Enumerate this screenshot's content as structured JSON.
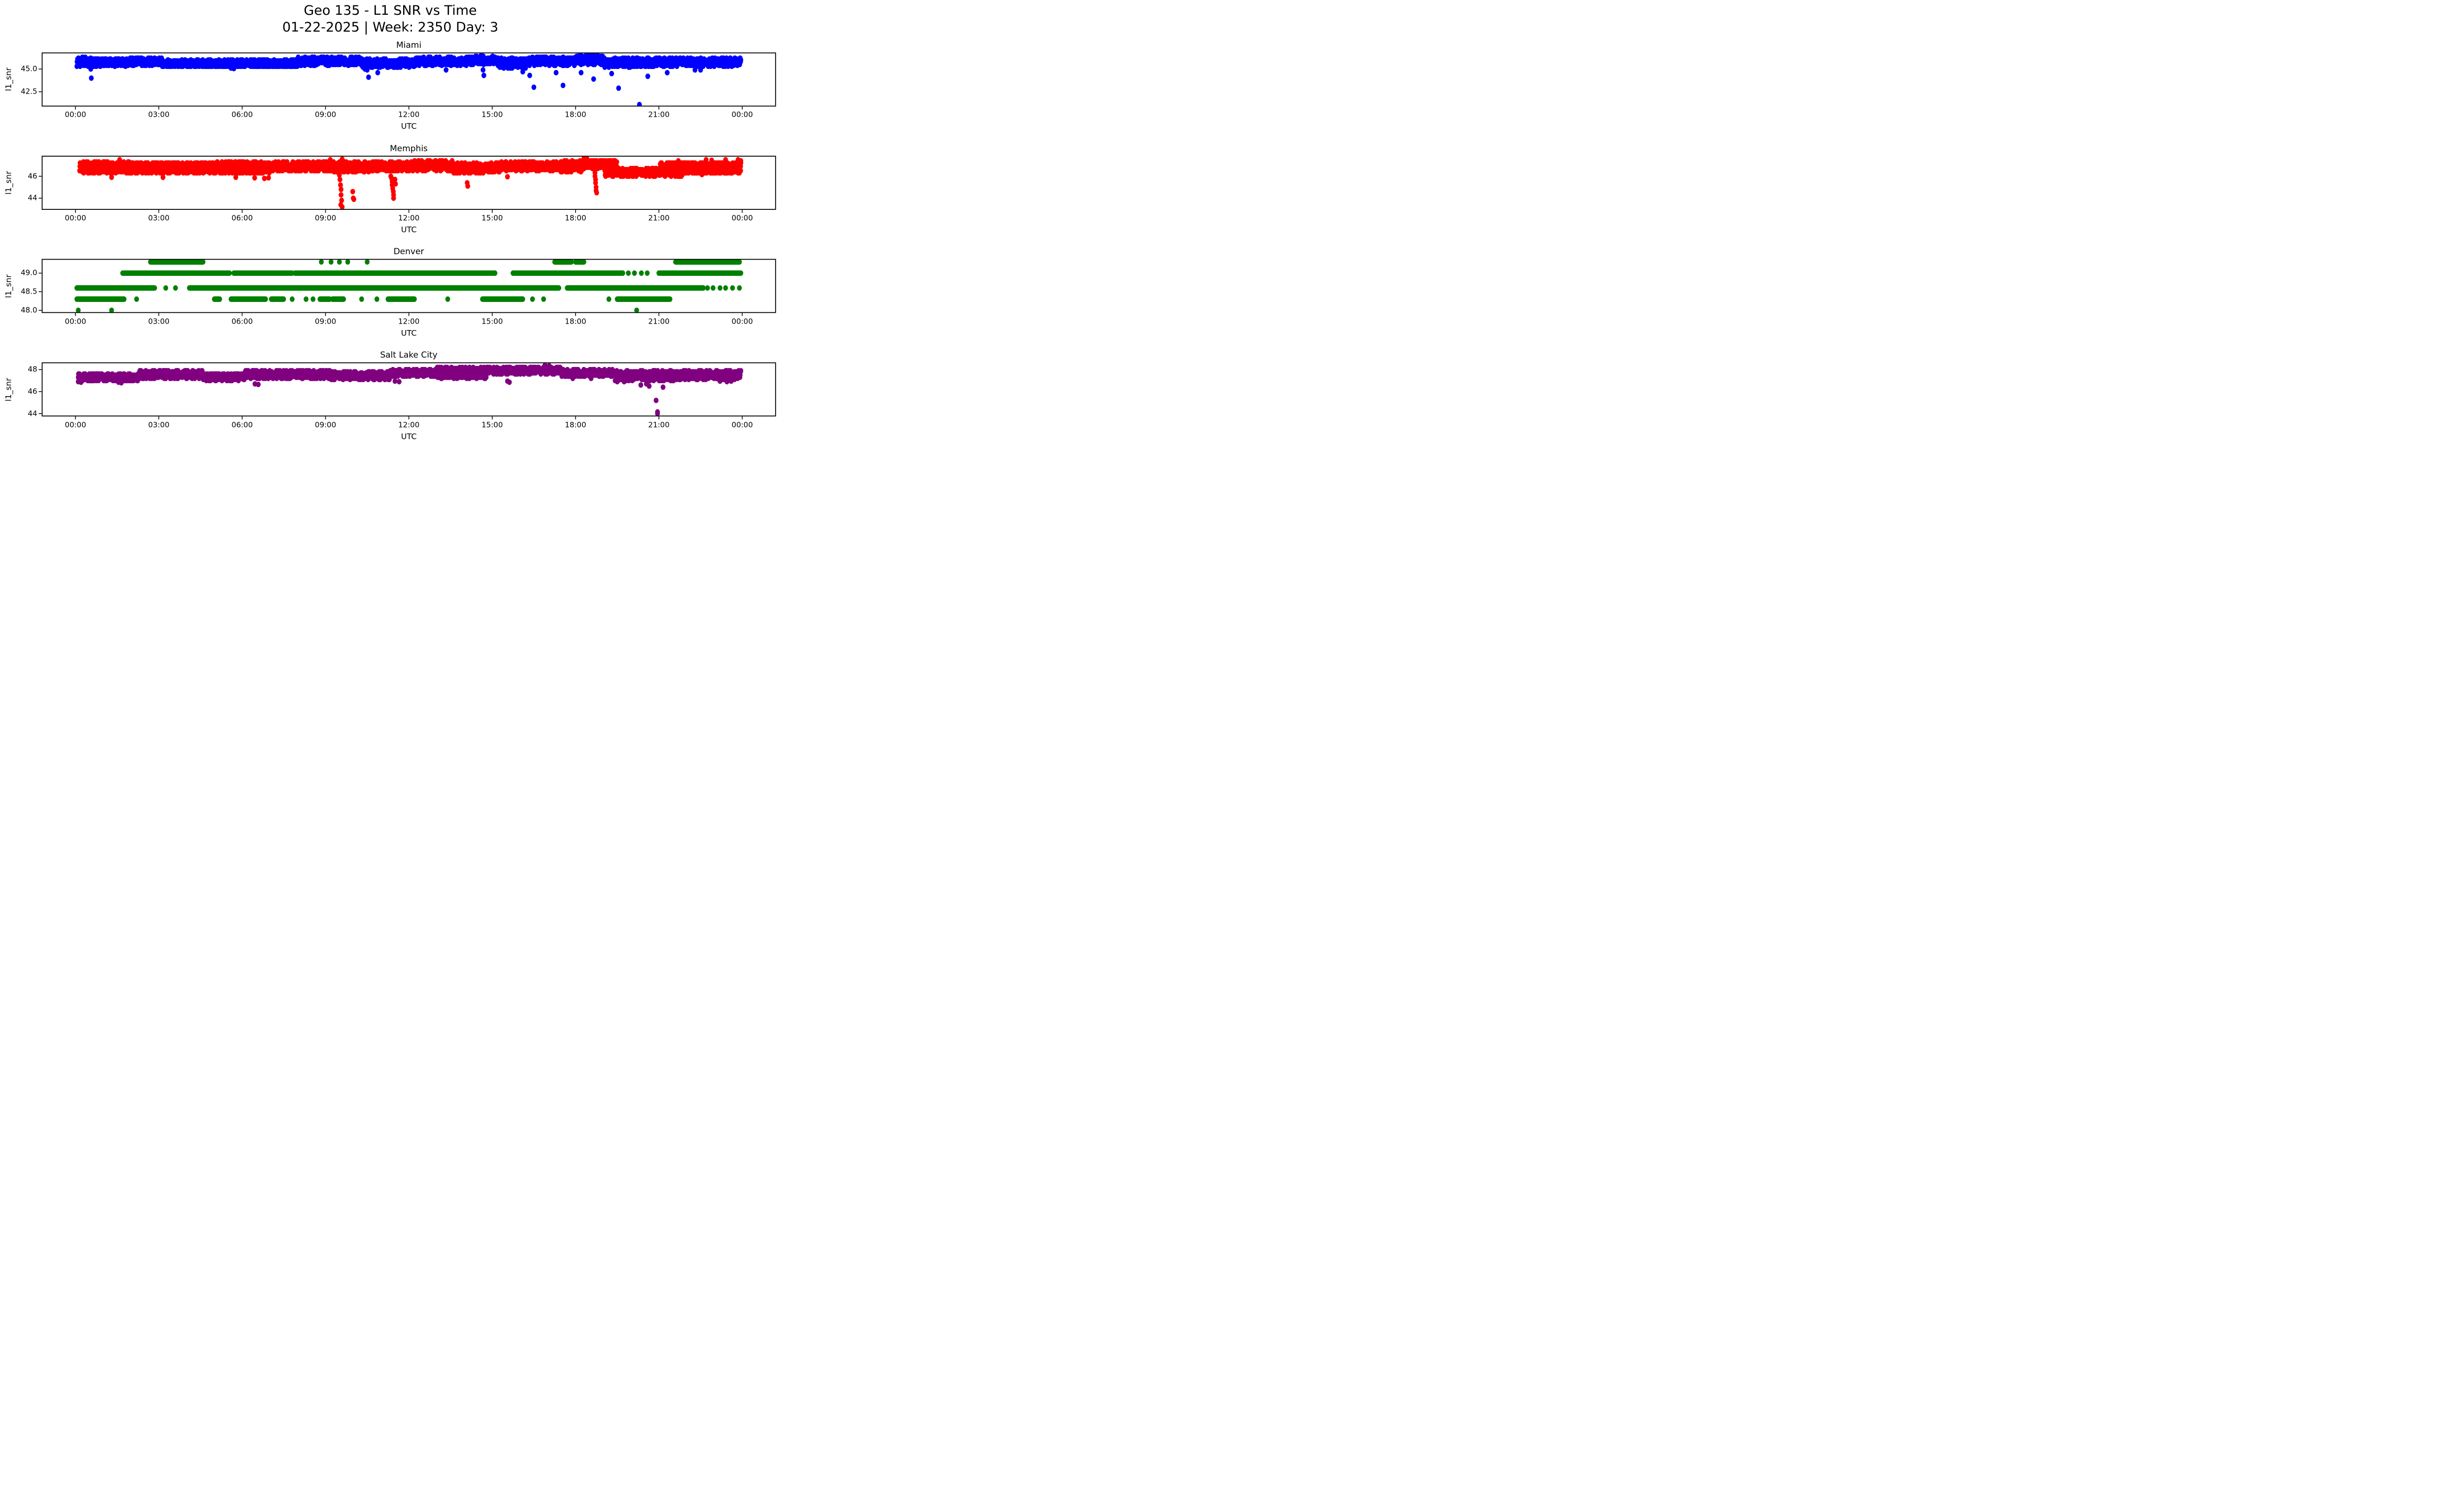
{
  "figure": {
    "title_line1": "Geo 135 - L1 SNR vs Time",
    "title_line2": "01-22-2025 | Week: 2350 Day: 3",
    "background_color": "#ffffff",
    "text_color": "#000000",
    "grid": false,
    "legend": null
  },
  "chart_data": [
    {
      "type": "scatter",
      "title": "Miami",
      "color": "#0000ff",
      "xlabel": "UTC",
      "ylabel": "l1_snr",
      "x_unit": "hours_utc",
      "xlim_hours": [
        -1.2,
        25.2
      ],
      "xticks_hours": [
        0,
        3,
        6,
        9,
        12,
        15,
        18,
        21,
        24
      ],
      "xtick_labels": [
        "00:00",
        "03:00",
        "06:00",
        "09:00",
        "12:00",
        "15:00",
        "18:00",
        "21:00",
        "00:00"
      ],
      "ylim": [
        40.93,
        46.77
      ],
      "yticks": [
        42.5,
        45.0
      ],
      "ytick_labels": [
        "42.5",
        "45.0"
      ],
      "sample_interval_seconds": 30,
      "snr_quantization": 0.1,
      "bands": [
        [
          0.05,
          2.1,
          45.3,
          46.2,
          120
        ],
        [
          2.1,
          3.1,
          45.4,
          46.25,
          120
        ],
        [
          3.1,
          8.0,
          45.25,
          45.8,
          120
        ],
        [
          3.1,
          8.0,
          45.85,
          46.05,
          12
        ],
        [
          8.0,
          10.3,
          45.4,
          46.3,
          120
        ],
        [
          10.3,
          12.2,
          45.2,
          46.1,
          120
        ],
        [
          12.2,
          14.1,
          45.4,
          46.3,
          120
        ],
        [
          14.1,
          15.2,
          45.5,
          46.4,
          120
        ],
        [
          15.2,
          16.2,
          45.1,
          46.2,
          120
        ],
        [
          16.2,
          18.0,
          45.4,
          46.3,
          120
        ],
        [
          18.0,
          19.0,
          45.5,
          46.5,
          120
        ],
        [
          19.0,
          20.9,
          45.2,
          46.2,
          120
        ],
        [
          20.9,
          23.95,
          45.3,
          46.2,
          120
        ]
      ],
      "outliers": [
        [
          0.25,
          46.3
        ],
        [
          0.35,
          46.3
        ],
        [
          0.55,
          45.0
        ],
        [
          0.57,
          44.0
        ],
        [
          5.6,
          45.1
        ],
        [
          5.7,
          45.05
        ],
        [
          10.42,
          45.0
        ],
        [
          10.5,
          44.9
        ],
        [
          10.55,
          44.1
        ],
        [
          10.88,
          44.6
        ],
        [
          13.34,
          44.9
        ],
        [
          14.6,
          46.5
        ],
        [
          14.67,
          44.9
        ],
        [
          14.7,
          44.3
        ],
        [
          16.1,
          44.7
        ],
        [
          16.35,
          44.3
        ],
        [
          16.5,
          43.0
        ],
        [
          17.3,
          44.6
        ],
        [
          17.55,
          43.2
        ],
        [
          18.2,
          44.6
        ],
        [
          18.45,
          46.55
        ],
        [
          18.55,
          46.6
        ],
        [
          18.65,
          43.9
        ],
        [
          19.3,
          44.5
        ],
        [
          19.55,
          42.9
        ],
        [
          20.3,
          41.1
        ],
        [
          20.6,
          44.2
        ],
        [
          21.3,
          44.6
        ],
        [
          22.3,
          44.9
        ],
        [
          22.5,
          44.9
        ]
      ]
    },
    {
      "type": "scatter",
      "title": "Memphis",
      "color": "#ff0000",
      "xlabel": "UTC",
      "ylabel": "l1_snr",
      "x_unit": "hours_utc",
      "xlim_hours": [
        -1.2,
        25.2
      ],
      "xticks_hours": [
        0,
        3,
        6,
        9,
        12,
        15,
        18,
        21,
        24
      ],
      "xtick_labels": [
        "00:00",
        "03:00",
        "06:00",
        "09:00",
        "12:00",
        "15:00",
        "18:00",
        "21:00",
        "00:00"
      ],
      "ylim": [
        42.98,
        47.82
      ],
      "yticks": [
        44,
        46
      ],
      "ytick_labels": [
        "44",
        "46"
      ],
      "sample_interval_seconds": 30,
      "snr_quantization": 0.1,
      "bands": [
        [
          0.15,
          2.0,
          46.45,
          47.35,
          120
        ],
        [
          2.0,
          5.0,
          46.4,
          47.25,
          120
        ],
        [
          5.0,
          9.3,
          46.45,
          47.35,
          120
        ],
        [
          0.25,
          7.0,
          46.25,
          46.4,
          14
        ],
        [
          9.3,
          10.6,
          46.35,
          47.3,
          120
        ],
        [
          10.6,
          12.2,
          46.45,
          47.3,
          120
        ],
        [
          12.2,
          13.6,
          46.5,
          47.4,
          120
        ],
        [
          13.6,
          15.3,
          46.3,
          47.2,
          120
        ],
        [
          15.3,
          17.4,
          46.5,
          47.3,
          120
        ],
        [
          17.4,
          18.3,
          46.4,
          47.4,
          120
        ],
        [
          18.3,
          19.5,
          46.7,
          47.45,
          120
        ],
        [
          19.05,
          21.85,
          46.0,
          46.7,
          120
        ],
        [
          21.05,
          23.95,
          46.7,
          47.25,
          120
        ],
        [
          21.85,
          23.95,
          46.25,
          46.7,
          100
        ]
      ],
      "outliers": [
        [
          1.3,
          45.9
        ],
        [
          1.59,
          47.5
        ],
        [
          3.15,
          45.9
        ],
        [
          5.77,
          45.9
        ],
        [
          6.45,
          45.85
        ],
        [
          6.8,
          45.8
        ],
        [
          6.95,
          45.85
        ],
        [
          9.17,
          47.5
        ],
        [
          9.6,
          47.55
        ],
        [
          9.5,
          46.1
        ],
        [
          9.52,
          45.7
        ],
        [
          9.54,
          45.2
        ],
        [
          9.56,
          44.8
        ],
        [
          9.56,
          44.3
        ],
        [
          9.58,
          43.8
        ],
        [
          9.55,
          43.4
        ],
        [
          9.6,
          43.2
        ],
        [
          9.98,
          44.6
        ],
        [
          10.0,
          44.0
        ],
        [
          10.02,
          43.9
        ],
        [
          11.35,
          46.0
        ],
        [
          11.38,
          45.8
        ],
        [
          11.4,
          45.5
        ],
        [
          11.4,
          45.2
        ],
        [
          11.42,
          44.9
        ],
        [
          11.44,
          44.6
        ],
        [
          11.45,
          44.3
        ],
        [
          11.45,
          44.0
        ],
        [
          11.5,
          45.7
        ],
        [
          11.52,
          45.3
        ],
        [
          14.1,
          45.4
        ],
        [
          14.12,
          45.1
        ],
        [
          15.55,
          45.95
        ],
        [
          18.3,
          47.6
        ],
        [
          18.4,
          47.65
        ],
        [
          18.68,
          46.6
        ],
        [
          18.7,
          46.3
        ],
        [
          18.7,
          46.0
        ],
        [
          18.72,
          45.7
        ],
        [
          18.72,
          45.4
        ],
        [
          18.74,
          45.0
        ],
        [
          18.74,
          44.7
        ],
        [
          18.76,
          44.5
        ],
        [
          21.7,
          47.4
        ],
        [
          22.55,
          46.15
        ],
        [
          22.7,
          47.5
        ],
        [
          22.9,
          47.45
        ],
        [
          23.4,
          47.5
        ],
        [
          23.85,
          47.5
        ],
        [
          23.95,
          47.4
        ]
      ]
    },
    {
      "type": "scatter",
      "title": "Denver",
      "color": "#008000",
      "xlabel": "UTC",
      "ylabel": "l1_snr",
      "x_unit": "hours_utc",
      "xlim_hours": [
        -1.2,
        25.2
      ],
      "xticks_hours": [
        0,
        3,
        6,
        9,
        12,
        15,
        18,
        21,
        24
      ],
      "xtick_labels": [
        "00:00",
        "03:00",
        "06:00",
        "09:00",
        "12:00",
        "15:00",
        "18:00",
        "21:00",
        "00:00"
      ],
      "ylim": [
        47.94,
        49.37
      ],
      "yticks": [
        48.0,
        48.5,
        49.0
      ],
      "ytick_labels": [
        "48.0",
        "48.5",
        "49.0"
      ],
      "sample_interval_seconds": 30,
      "snr_quantization": 0.1,
      "levels": [
        {
          "snr": 49.3,
          "runs": [
            [
              2.7,
              4.6
            ],
            [
              17.25,
              17.85
            ],
            [
              18.0,
              18.3
            ],
            [
              21.6,
              23.9
            ]
          ],
          "points": [
            8.85,
            9.2,
            9.5,
            9.8,
            10.5
          ]
        },
        {
          "snr": 49.0,
          "runs": [
            [
              1.7,
              5.55
            ],
            [
              5.7,
              7.8
            ],
            [
              7.9,
              15.1
            ],
            [
              15.75,
              19.7
            ],
            [
              21.0,
              23.95
            ]
          ],
          "points": [
            19.9,
            20.12,
            20.37,
            20.58
          ]
        },
        {
          "snr": 48.6,
          "runs": [
            [
              0.05,
              2.85
            ],
            [
              4.1,
              17.4
            ],
            [
              17.7,
              22.6
            ]
          ],
          "points": [
            3.25,
            3.6,
            22.75,
            22.95,
            23.2,
            23.4,
            23.65,
            23.9
          ]
        },
        {
          "snr": 48.3,
          "runs": [
            [
              0.05,
              1.75
            ],
            [
              5.0,
              5.2
            ],
            [
              5.6,
              6.85
            ],
            [
              7.05,
              7.5
            ],
            [
              8.8,
              9.15
            ],
            [
              9.25,
              9.65
            ],
            [
              11.25,
              12.2
            ],
            [
              14.65,
              16.1
            ],
            [
              19.5,
              21.4
            ]
          ],
          "points": [
            2.2,
            7.8,
            8.3,
            8.55,
            10.3,
            10.85,
            13.4,
            16.45,
            16.85,
            19.2
          ]
        },
        {
          "snr": 48.0,
          "runs": [],
          "points": [
            0.1,
            1.3,
            20.2
          ]
        }
      ],
      "outliers": []
    },
    {
      "type": "scatter",
      "title": "Salt Lake City",
      "color": "#800080",
      "xlabel": "UTC",
      "ylabel": "l1_snr",
      "x_unit": "hours_utc",
      "xlim_hours": [
        -1.2,
        25.2
      ],
      "xticks_hours": [
        0,
        3,
        6,
        9,
        12,
        15,
        18,
        21,
        24
      ],
      "xtick_labels": [
        "00:00",
        "03:00",
        "06:00",
        "09:00",
        "12:00",
        "15:00",
        "18:00",
        "21:00",
        "00:00"
      ],
      "ylim": [
        43.78,
        48.62
      ],
      "yticks": [
        44,
        46,
        48
      ],
      "ytick_labels": [
        "44",
        "46",
        "48"
      ],
      "sample_interval_seconds": 30,
      "snr_quantization": 0.1,
      "bands": [
        [
          0.1,
          2.3,
          46.95,
          47.6,
          120
        ],
        [
          2.3,
          4.6,
          47.2,
          47.9,
          120
        ],
        [
          4.6,
          6.1,
          47.0,
          47.65,
          120
        ],
        [
          6.1,
          9.2,
          47.2,
          47.9,
          120
        ],
        [
          9.2,
          11.3,
          47.1,
          47.8,
          120
        ],
        [
          11.3,
          13.0,
          47.4,
          48.0,
          120
        ],
        [
          13.0,
          16.2,
          47.6,
          48.2,
          120
        ],
        [
          13.0,
          14.8,
          47.2,
          47.6,
          60
        ],
        [
          16.2,
          17.5,
          47.6,
          48.2,
          120
        ],
        [
          17.5,
          19.4,
          47.4,
          48.0,
          120
        ],
        [
          19.4,
          21.7,
          47.0,
          47.9,
          120
        ],
        [
          21.7,
          23.95,
          47.1,
          47.9,
          120
        ]
      ],
      "outliers": [
        [
          0.1,
          46.9
        ],
        [
          0.2,
          46.85
        ],
        [
          1.55,
          46.85
        ],
        [
          1.65,
          46.8
        ],
        [
          6.46,
          46.7
        ],
        [
          6.58,
          46.65
        ],
        [
          11.5,
          46.95
        ],
        [
          11.65,
          46.9
        ],
        [
          15.55,
          46.95
        ],
        [
          15.62,
          46.85
        ],
        [
          16.9,
          48.4
        ],
        [
          17.05,
          48.35
        ],
        [
          17.9,
          47.2
        ],
        [
          18.56,
          47.2
        ],
        [
          19.5,
          46.9
        ],
        [
          19.75,
          46.9
        ],
        [
          20.35,
          46.6
        ],
        [
          20.55,
          46.7
        ],
        [
          20.65,
          46.5
        ],
        [
          20.9,
          45.2
        ],
        [
          20.95,
          44.15
        ],
        [
          20.95,
          44.0
        ],
        [
          21.15,
          46.4
        ],
        [
          23.2,
          46.95
        ],
        [
          23.45,
          46.9
        ],
        [
          23.6,
          46.95
        ]
      ]
    }
  ]
}
